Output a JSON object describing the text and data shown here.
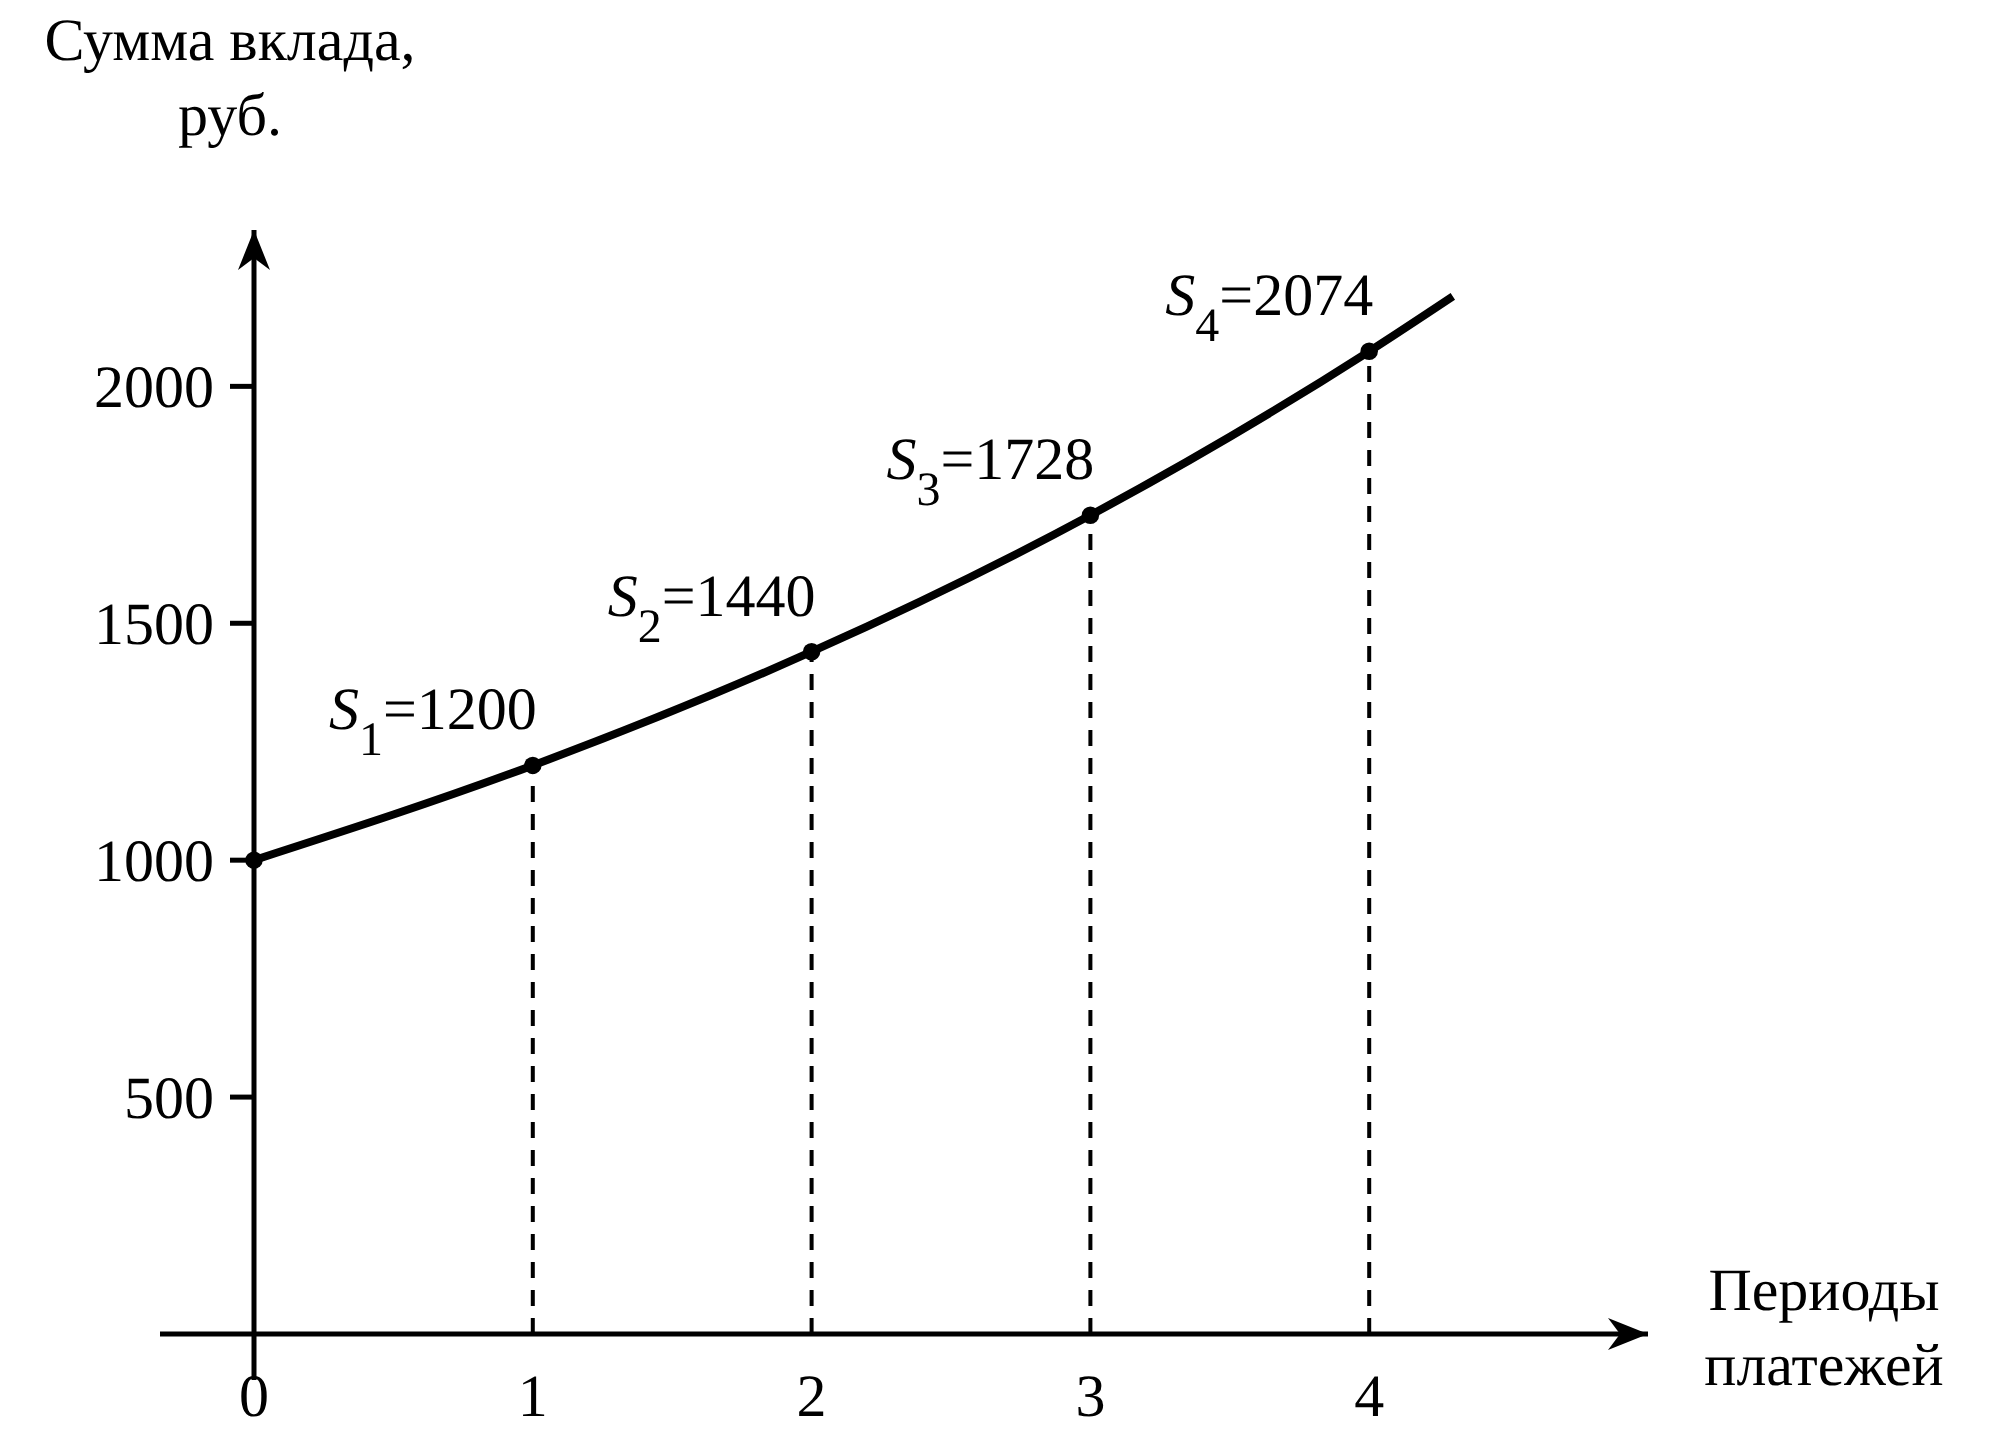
{
  "chart_data": {
    "type": "line",
    "xlabel": "Периоды платежей",
    "ylabel": "Сумма вклада, руб.",
    "xlim": [
      0,
      5
    ],
    "ylim": [
      0,
      2330
    ],
    "xticks": [
      0,
      1,
      2,
      3,
      4
    ],
    "yticks": [
      500,
      1000,
      1500,
      2000
    ],
    "series": [
      {
        "color": "#000000",
        "marker": "none",
        "x": [
          0,
          1,
          2,
          3,
          4,
          4.3
        ],
        "values": [
          1000,
          1200,
          1440,
          1728,
          2074,
          2190
        ]
      },
      {
        "type": "scatter",
        "color": "#000000",
        "marker": "circle",
        "x": [
          0,
          1,
          2,
          3,
          4
        ],
        "values": [
          1000,
          1200,
          1440,
          1728,
          2074
        ]
      }
    ],
    "ref_lines": [
      {
        "axis": "x",
        "value": 1,
        "line_style": "dashed",
        "color": "#000000"
      },
      {
        "axis": "x",
        "value": 2,
        "line_style": "dashed",
        "color": "#000000"
      },
      {
        "axis": "x",
        "value": 3,
        "line_style": "dashed",
        "color": "#000000"
      },
      {
        "axis": "x",
        "value": 4,
        "line_style": "dashed",
        "color": "#000000"
      }
    ],
    "annotations": [
      {
        "text": "S$_{1}$=1200",
        "x": 1,
        "y": 1200
      },
      {
        "text": "S$_{2}$=1440",
        "x": 2,
        "y": 1440
      },
      {
        "text": "S$_{3}$=1728",
        "x": 3,
        "y": 1728
      },
      {
        "text": "S$_{4}$=2074",
        "x": 4,
        "y": 2074
      }
    ]
  }
}
